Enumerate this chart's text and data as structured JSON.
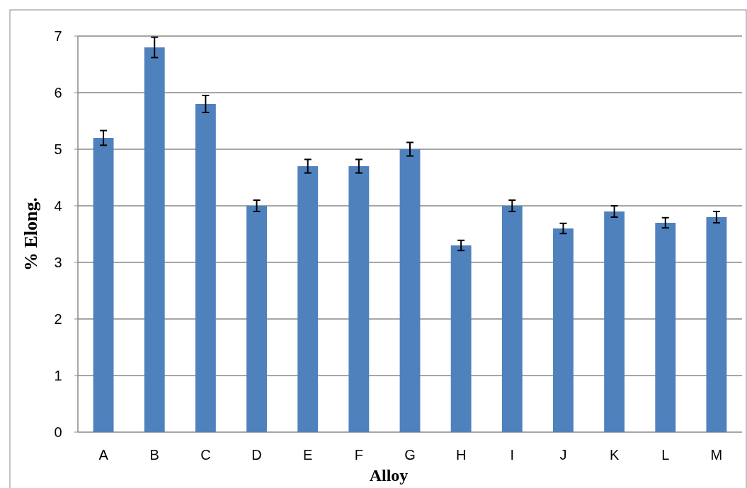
{
  "chart_data": {
    "type": "bar",
    "xlabel": "Alloy",
    "ylabel": "% Elong.",
    "categories": [
      "A",
      "B",
      "C",
      "D",
      "E",
      "F",
      "G",
      "H",
      "I",
      "J",
      "K",
      "L",
      "M"
    ],
    "values": [
      5.2,
      6.8,
      5.8,
      4.0,
      4.7,
      4.7,
      5.0,
      3.3,
      4.0,
      3.6,
      3.9,
      3.7,
      3.8
    ],
    "errors": [
      0.13,
      0.18,
      0.15,
      0.1,
      0.12,
      0.12,
      0.12,
      0.09,
      0.1,
      0.09,
      0.1,
      0.09,
      0.1
    ],
    "color": "#4f81bd",
    "ylim": [
      0,
      7
    ],
    "yticks": [
      0,
      1,
      2,
      3,
      4,
      5,
      6,
      7
    ],
    "grid": "y"
  }
}
